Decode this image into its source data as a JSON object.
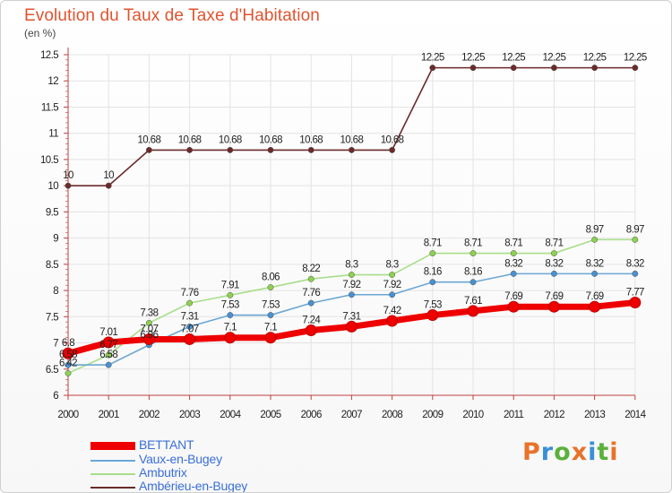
{
  "title": "Evolution du Taux de Taxe d'Habitation",
  "unit_label": "(en %)",
  "brand": {
    "text": "Proxiti",
    "colors": [
      "#e8722a",
      "#3a8fd6",
      "#5bb13b",
      "#e8722a",
      "#3a8fd6",
      "#5bb13b",
      "#e8722a"
    ]
  },
  "chart_data": {
    "type": "line",
    "title": "Evolution du Taux de Taxe d'Habitation",
    "ylabel": "(en %)",
    "xlabel": "",
    "x": [
      "2000",
      "2001",
      "2002",
      "2003",
      "2004",
      "2005",
      "2006",
      "2007",
      "2008",
      "2009",
      "2010",
      "2011",
      "2012",
      "2013",
      "2014"
    ],
    "ylim": [
      6,
      12.5
    ],
    "yticks": [
      6,
      6.5,
      7,
      7.5,
      8,
      8.5,
      9,
      9.5,
      10,
      10.5,
      11,
      11.5,
      12,
      12.5
    ],
    "ytick_labels": [
      "6",
      "6.5",
      "7",
      "7.5",
      "8",
      "8.5",
      "9",
      "9.5",
      "10",
      "10.5",
      "11",
      "11.5",
      "12",
      "12.5"
    ],
    "grid": true,
    "legend_position": "bottom-left",
    "series": [
      {
        "name": "BETTANT",
        "color": "#ee0000",
        "point_color": "#ee0000",
        "values": [
          6.8,
          7.01,
          7.07,
          7.07,
          7.1,
          7.1,
          7.24,
          7.31,
          7.42,
          7.53,
          7.61,
          7.69,
          7.69,
          7.69,
          7.77
        ],
        "labels": [
          "6.8",
          "7.01",
          "7.07",
          "7.07",
          "7.1",
          "7.1",
          "7.24",
          "7.31",
          "7.42",
          "7.53",
          "7.61",
          "7.69",
          "7.69",
          "7.69",
          "7.77"
        ]
      },
      {
        "name": "Vaux-en-Bugey",
        "color": "#6aa7d4",
        "point_color": "#4a90d0",
        "values": [
          6.58,
          6.58,
          6.96,
          7.31,
          7.53,
          7.53,
          7.76,
          7.92,
          7.92,
          8.16,
          8.16,
          8.32,
          8.32,
          8.32,
          8.32
        ],
        "labels": [
          "6.58",
          "6.58",
          "6.96",
          "7.31",
          "7.53",
          "7.53",
          "7.76",
          "7.92",
          "7.92",
          "8.16",
          "8.16",
          "8.32",
          "8.32",
          "8.32",
          "8.32"
        ]
      },
      {
        "name": "Ambutrix",
        "color": "#a8de8a",
        "point_color": "#8ed050",
        "values": [
          6.42,
          6.77,
          7.38,
          7.76,
          7.91,
          8.06,
          8.22,
          8.3,
          8.3,
          8.71,
          8.71,
          8.71,
          8.71,
          8.97,
          8.97
        ],
        "labels": [
          "6.42",
          "6.77",
          "7.38",
          "7.76",
          "7.91",
          "8.06",
          "8.22",
          "8.3",
          "8.3",
          "8.71",
          "8.71",
          "8.71",
          "8.71",
          "8.97",
          "8.97"
        ]
      },
      {
        "name": "Ambérieu-en-Bugey",
        "color": "#6b2a2a",
        "point_color": "#6b2a2a",
        "values": [
          10,
          10,
          10.68,
          10.68,
          10.68,
          10.68,
          10.68,
          10.68,
          10.68,
          12.25,
          12.25,
          12.25,
          12.25,
          12.25,
          12.25
        ],
        "labels": [
          "10",
          "10",
          "10.68",
          "10.68",
          "10.68",
          "10.68",
          "10.68",
          "10.68",
          "10.68",
          "12.25",
          "12.25",
          "12.25",
          "12.25",
          "12.25",
          "12.25"
        ]
      }
    ]
  }
}
